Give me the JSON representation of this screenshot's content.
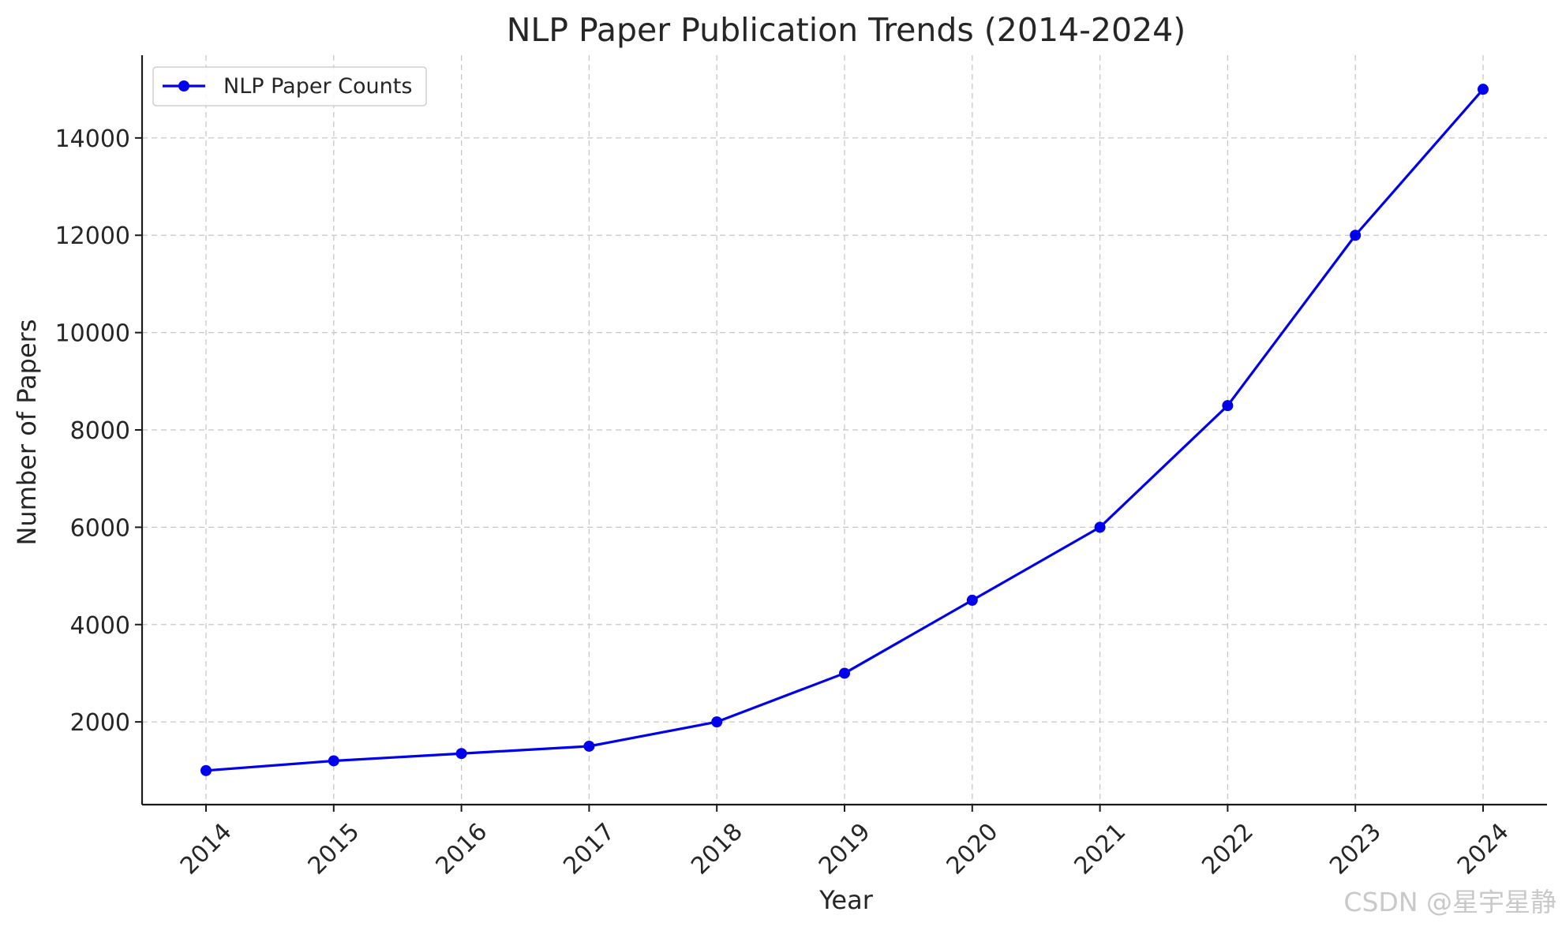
{
  "chart_data": {
    "type": "line",
    "title": "NLP Paper Publication Trends (2014-2024)",
    "xlabel": "Year",
    "ylabel": "Number of Papers",
    "categories": [
      "2014",
      "2015",
      "2016",
      "2017",
      "2018",
      "2019",
      "2020",
      "2021",
      "2022",
      "2023",
      "2024"
    ],
    "series": [
      {
        "name": "NLP Paper Counts",
        "color": "#0000ee",
        "marker": "circle",
        "values": [
          1000,
          1200,
          1350,
          1500,
          2000,
          3000,
          4500,
          6000,
          8500,
          12000,
          15000
        ]
      }
    ],
    "ylim": [
      300,
      15700
    ],
    "yticks": [
      2000,
      4000,
      6000,
      8000,
      10000,
      12000,
      14000
    ],
    "grid": true,
    "legend_position": "top-left",
    "x_tick_rotation": 45
  },
  "watermark": "CSDN @星宇星静"
}
